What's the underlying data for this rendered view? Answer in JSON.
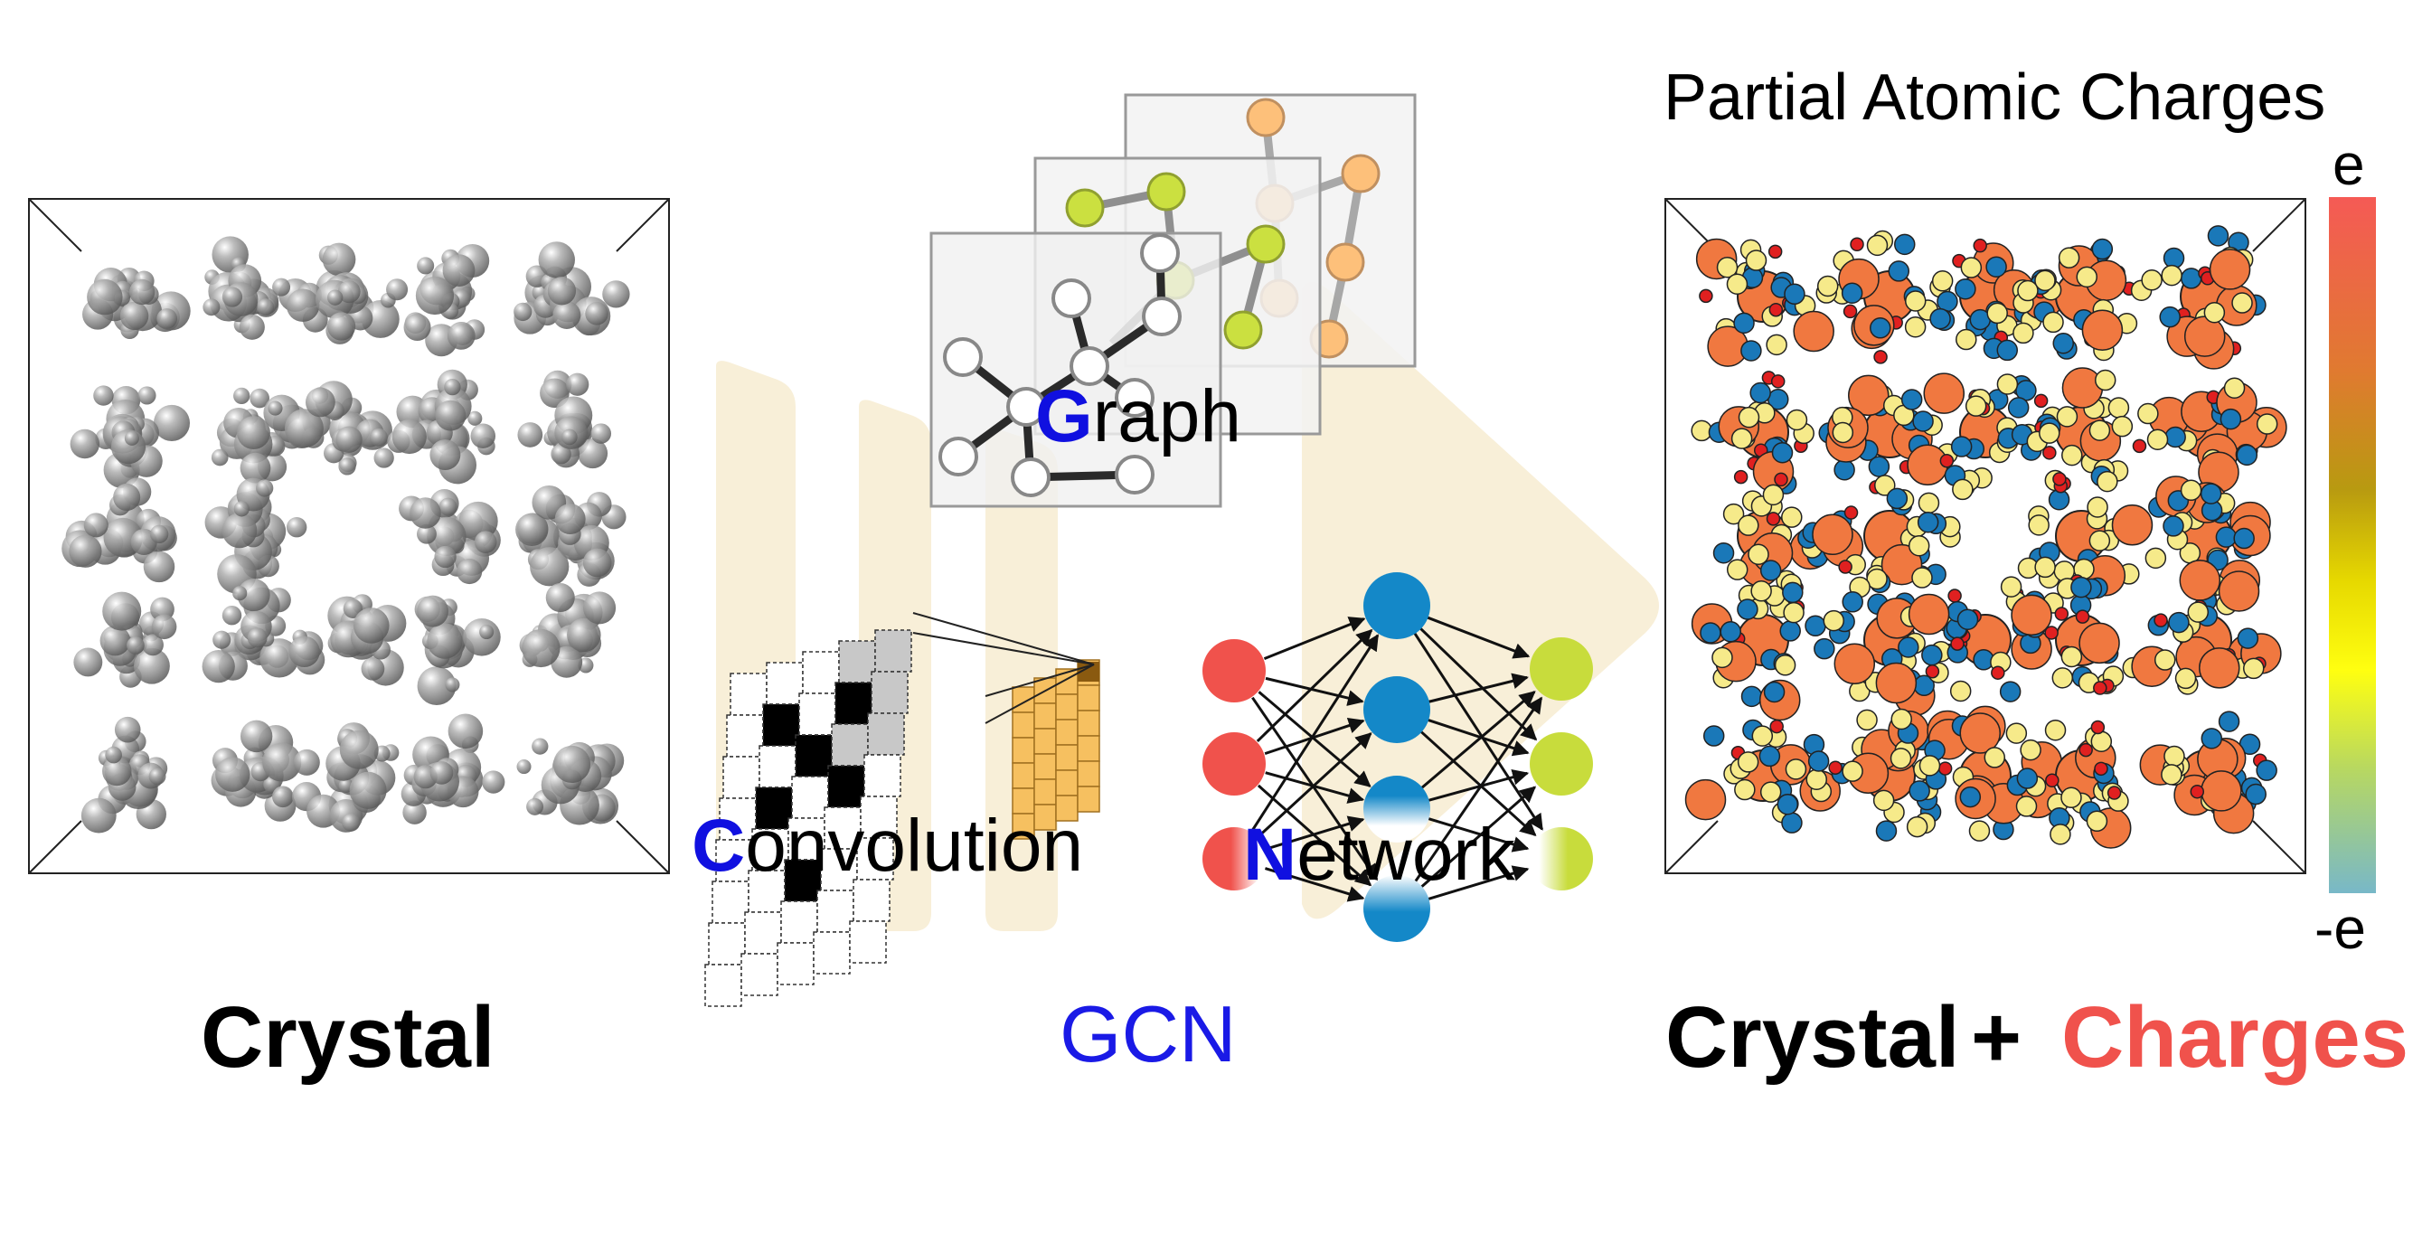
{
  "captions": {
    "crystal": "Crystal",
    "gcn": "GCN",
    "crystal_plus": "Crystal",
    "plus": "+",
    "charges": "Charges"
  },
  "gcn_words": {
    "graph_initial": "G",
    "graph_rest": "raph",
    "convolution_initial": "C",
    "convolution_rest": "onvolution",
    "network_initial": "N",
    "network_rest": "etwork"
  },
  "colorbar": {
    "title": "Partial Atomic Charges",
    "top_label": "e",
    "bottom_label": "-e",
    "colors": [
      "#f55a55",
      "#e07a30",
      "#b89a10",
      "#e6d800",
      "#ffff10",
      "#b8d860",
      "#78b8c8"
    ]
  },
  "colors": {
    "accent_blue": "#1a1ae6",
    "charges_red": "#f0524c",
    "atom_gray": "#8a8a8a",
    "atom_orange": "#f07840",
    "atom_yellow": "#f6ea8a",
    "atom_blue": "#1a78b8",
    "atom_red": "#e02020",
    "node_red": "#f0524c",
    "node_blue": "#1488c8",
    "node_lime": "#c8dc3c",
    "arrow_cream": "#f8efd8"
  },
  "icons": [
    "crystal-structure",
    "graph-network",
    "convolution-grid",
    "neural-network",
    "charged-crystal-structure"
  ]
}
